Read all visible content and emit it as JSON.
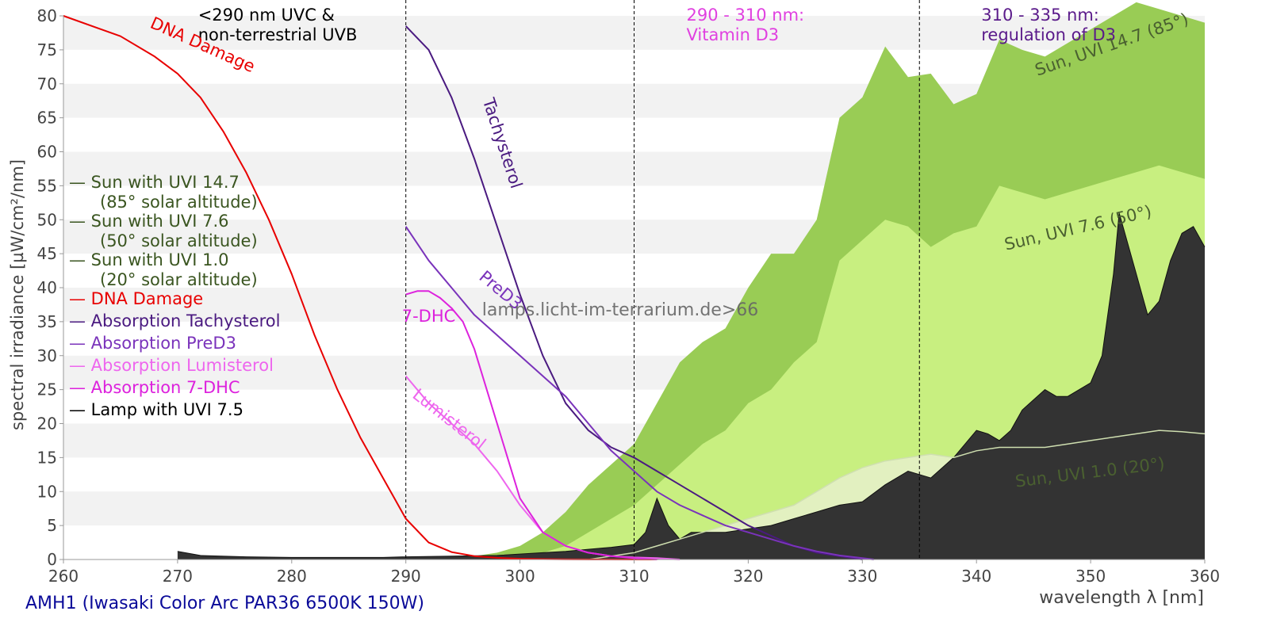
{
  "chart_data": {
    "type": "area",
    "title": "",
    "caption": "AMH1 (Iwasaki Color Arc PAR36 6500K 150W)",
    "watermark": "lamps.licht-im-terrarium.de>66",
    "xlabel": "wavelength λ [nm]",
    "ylabel": "spectral irradiance [µW/cm²/nm]",
    "xlim": [
      260,
      360
    ],
    "ylim": [
      0,
      80
    ],
    "xticks": [
      "260",
      "270",
      "280",
      "290",
      "300",
      "310",
      "320",
      "330",
      "340",
      "350",
      "360"
    ],
    "yticks": [
      "0",
      "5",
      "10",
      "15",
      "20",
      "25",
      "30",
      "35",
      "40",
      "45",
      "50",
      "55",
      "60",
      "65",
      "70",
      "75",
      "80"
    ],
    "bands": [
      {
        "at": 290,
        "line1": "<290 nm UVC &",
        "line2": "non-terrestrial UVB",
        "color": "#000000"
      },
      {
        "at": 310,
        "line1": "290 - 310 nm:",
        "line2": "Vitamin D3",
        "color": "#e040e0"
      },
      {
        "at": 335,
        "line1": "310 - 335 nm:",
        "line2": "regulation of D3",
        "color": "#5a1a8a"
      }
    ],
    "series": [
      {
        "name": "Sun, UVI 14.7 (85°)",
        "color": "#99cc55",
        "x": [
          294,
          296,
          298,
          300,
          302,
          304,
          306,
          308,
          310,
          312,
          314,
          316,
          318,
          320,
          322,
          324,
          326,
          328,
          330,
          332,
          334,
          336,
          338,
          340,
          342,
          344,
          346,
          348,
          350,
          352,
          354,
          356,
          358,
          360
        ],
        "values": [
          0,
          0.5,
          1,
          2,
          4,
          7,
          11,
          14,
          17,
          23,
          29,
          32,
          34,
          40,
          45,
          45,
          50,
          65,
          68,
          75.5,
          71,
          71.5,
          67,
          68.5,
          76.5,
          75,
          74,
          76,
          78,
          80,
          82,
          81,
          80,
          79
        ]
      },
      {
        "name": "Sun, UVI 7.6 (50°)",
        "color": "#c8ef80",
        "x": [
          300,
          302,
          304,
          306,
          308,
          310,
          312,
          314,
          316,
          318,
          320,
          322,
          324,
          326,
          328,
          330,
          332,
          334,
          336,
          338,
          340,
          342,
          344,
          346,
          348,
          350,
          352,
          354,
          356,
          358,
          360
        ],
        "values": [
          0,
          1,
          2,
          4,
          6,
          8,
          11,
          14,
          17,
          19,
          23,
          25,
          29,
          32,
          44,
          47,
          50,
          49,
          46,
          48,
          49,
          55,
          54,
          53,
          54,
          55,
          56,
          57,
          58,
          57,
          56
        ]
      },
      {
        "name": "Sun, UVI 1.0 (20°)",
        "color": "#e2f0c0",
        "x": [
          306,
          308,
          310,
          312,
          314,
          316,
          318,
          320,
          322,
          324,
          326,
          328,
          330,
          332,
          334,
          336,
          338,
          340,
          342,
          344,
          346,
          348,
          350,
          352,
          354,
          356,
          358,
          360
        ],
        "values": [
          0,
          0.5,
          1,
          2,
          3,
          4,
          5,
          6,
          7,
          8,
          10,
          12,
          13.5,
          14.5,
          15,
          15.5,
          15,
          16,
          16.5,
          16.5,
          16.5,
          17,
          17.5,
          18,
          18.5,
          19,
          18.8,
          18.5
        ]
      },
      {
        "name": "Lamp with UVI 7.5",
        "color": "#333333",
        "x": [
          270,
          272,
          276,
          280,
          284,
          288,
          290,
          294,
          298,
          300,
          302,
          304,
          306,
          308,
          310,
          311,
          312,
          313,
          314,
          315,
          318,
          320,
          322,
          324,
          326,
          328,
          330,
          332,
          334,
          335,
          336,
          338,
          340,
          341,
          342,
          343,
          344,
          346,
          347,
          348,
          350,
          351,
          352,
          352.5,
          353,
          354,
          355,
          356,
          357,
          358,
          359,
          360
        ],
        "values": [
          1.2,
          0.6,
          0.4,
          0.3,
          0.3,
          0.3,
          0.4,
          0.5,
          0.6,
          0.8,
          1.0,
          1.2,
          1.5,
          1.8,
          2.2,
          4,
          9,
          5,
          3,
          4,
          4,
          4.5,
          5,
          6,
          7,
          8,
          8.5,
          11,
          13,
          12.5,
          12,
          15,
          19,
          18.5,
          17.5,
          19,
          22,
          25,
          24,
          24,
          26,
          30,
          42,
          51,
          48,
          42,
          36,
          38,
          44,
          48,
          49,
          46
        ]
      },
      {
        "name": "DNA Damage",
        "color": "#e80000",
        "x": [
          260,
          265,
          268,
          270,
          272,
          274,
          276,
          278,
          280,
          282,
          284,
          286,
          288,
          289,
          290,
          292,
          294,
          296,
          298,
          300,
          302,
          304,
          306,
          308,
          310,
          312
        ],
        "values": [
          80,
          77,
          74,
          71.5,
          68,
          63,
          57,
          50,
          42,
          33,
          25,
          18,
          12,
          9,
          6,
          2.5,
          1.1,
          0.5,
          0.25,
          0.12,
          0.06,
          0.03,
          0.015,
          0.008,
          0.004,
          0
        ]
      },
      {
        "name": "Absorption Tachysterol",
        "color": "#4a1a80",
        "x": [
          290,
          292,
          294,
          296,
          298,
          300,
          302,
          304,
          306,
          308,
          310,
          312,
          314,
          316,
          318,
          320,
          322,
          324,
          326,
          328,
          330
        ],
        "values": [
          78.5,
          75,
          68,
          59,
          49,
          39,
          30,
          23,
          19,
          16.5,
          15,
          13,
          11,
          9,
          7,
          5,
          3.5,
          2,
          1,
          0.5,
          0
        ]
      },
      {
        "name": "Absorption PreD3",
        "color": "#7a33bb",
        "x": [
          290,
          292,
          294,
          296,
          298,
          300,
          302,
          304,
          306,
          308,
          310,
          312,
          314,
          316,
          318,
          320,
          322,
          324,
          326,
          328,
          330,
          331
        ],
        "values": [
          49,
          44,
          40,
          36,
          33,
          30,
          27,
          24,
          20,
          16,
          13,
          10,
          8,
          6.5,
          5,
          4,
          3,
          2,
          1.2,
          0.6,
          0.2,
          0
        ]
      },
      {
        "name": "Absorption Lumisterol",
        "color": "#ee66ee",
        "x": [
          290,
          292,
          294,
          296,
          298,
          300,
          302,
          304,
          306,
          308,
          310,
          312,
          314
        ],
        "values": [
          27,
          23,
          20,
          17,
          13,
          8,
          4,
          2,
          1,
          0.5,
          0.3,
          0.2,
          0
        ]
      },
      {
        "name": "Absorption 7-DHC",
        "color": "#dd22dd",
        "x": [
          290,
          291,
          292,
          293,
          294,
          295,
          296,
          298,
          300,
          302,
          304,
          306,
          308,
          310,
          312
        ],
        "values": [
          39,
          39.5,
          39.5,
          38.5,
          37,
          35,
          31,
          20,
          9,
          4,
          2,
          1,
          0.5,
          0.2,
          0
        ]
      }
    ],
    "annotations": [
      {
        "text": "Sun, UVI 14.7 (85°)",
        "x": 352,
        "y": 75,
        "rotate": -19,
        "color": "#4a6030"
      },
      {
        "text": "Sun, UVI 7.6 (50°)",
        "x": 349,
        "y": 48,
        "rotate": -13,
        "color": "#4a6030"
      },
      {
        "text": "Sun, UVI 1.0 (20°)",
        "x": 350,
        "y": 12,
        "rotate": -7,
        "color": "#4a6030"
      },
      {
        "text": "DNA Damage",
        "x": 272,
        "y": 75,
        "rotate": 24,
        "color": "#e80000"
      },
      {
        "text": "Tachysterol",
        "x": 298,
        "y": 61,
        "rotate": 72,
        "color": "#4a1a80"
      },
      {
        "text": "PreD3",
        "x": 298,
        "y": 39,
        "rotate": 40,
        "color": "#7a33bb"
      },
      {
        "text": "7-DHC",
        "x": 292,
        "y": 35,
        "rotate": 0,
        "color": "#dd22dd"
      },
      {
        "text": "Lumisterol",
        "x": 293.5,
        "y": 20,
        "rotate": 38,
        "color": "#ee66ee"
      }
    ],
    "legend": {
      "placement": "left",
      "items": [
        {
          "line1": "— Sun with UVI 14.7",
          "line2": "(85° solar altitude)",
          "color": "#3a5520"
        },
        {
          "line1": "— Sun with UVI 7.6",
          "line2": "(50° solar altitude)",
          "color": "#3a5520"
        },
        {
          "line1": "— Sun with UVI 1.0",
          "line2": "(20° solar altitude)",
          "color": "#3a5520"
        },
        {
          "line1": "— DNA Damage",
          "line2": "",
          "color": "#e80000"
        },
        {
          "line1": "— Absorption Tachysterol",
          "line2": "",
          "color": "#4a1a80"
        },
        {
          "line1": "— Absorption PreD3",
          "line2": "",
          "color": "#7a33bb"
        },
        {
          "line1": "— Absorption Lumisterol",
          "line2": "",
          "color": "#ee66ee"
        },
        {
          "line1": "— Absorption 7-DHC",
          "line2": "",
          "color": "#dd22dd"
        },
        {
          "line1": "— Lamp with UVI 7.5",
          "line2": "",
          "color": "#000000"
        }
      ]
    }
  }
}
